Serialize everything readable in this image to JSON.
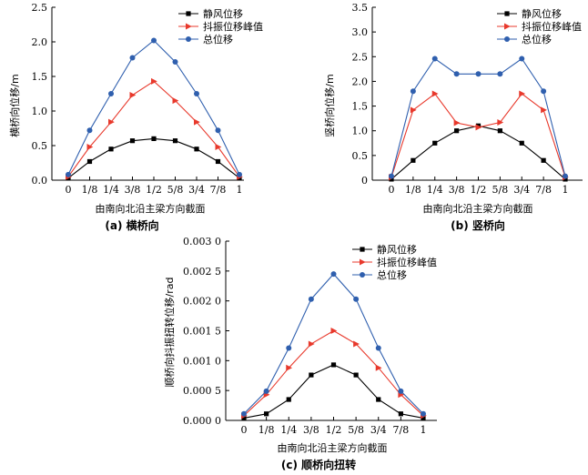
{
  "chart_data": [
    {
      "type": "line",
      "caption": "(a) 横桥向",
      "xlabel": "由南向北沿主梁方向截面",
      "ylabel": "横桥向位移/m",
      "categories": [
        "0",
        "1/8",
        "1/4",
        "3/8",
        "1/2",
        "5/8",
        "3/4",
        "7/8",
        "1"
      ],
      "yticks": [
        "0.0",
        "0.5",
        "1.0",
        "1.5",
        "2.0",
        "2.5"
      ],
      "ylim": [
        0,
        2.5
      ],
      "legend_position": "top-right",
      "series": [
        {
          "name": "静风位移",
          "marker": "square",
          "color": "#000000",
          "values": [
            0.03,
            0.27,
            0.45,
            0.57,
            0.6,
            0.57,
            0.45,
            0.27,
            0.03
          ]
        },
        {
          "name": "抖振位移峰值",
          "marker": "triangle-right",
          "color": "#e8392c",
          "values": [
            0.05,
            0.48,
            0.84,
            1.23,
            1.43,
            1.15,
            0.84,
            0.48,
            0.05
          ]
        },
        {
          "name": "总位移",
          "marker": "circle",
          "color": "#2f5fae",
          "values": [
            0.08,
            0.72,
            1.25,
            1.77,
            2.02,
            1.71,
            1.25,
            0.72,
            0.08
          ]
        }
      ]
    },
    {
      "type": "line",
      "caption": "(b) 竖桥向",
      "xlabel": "由南向北沿主梁方向截面",
      "ylabel": "竖桥向位移/m",
      "categories": [
        "0",
        "1/8",
        "1/4",
        "3/8",
        "1/2",
        "5/8",
        "3/4",
        "7/8",
        "1"
      ],
      "yticks": [
        "0",
        "0.5",
        "1.0",
        "1.5",
        "2.0",
        "2.5",
        "3.0",
        "3.5"
      ],
      "ylim": [
        0,
        3.5
      ],
      "legend_position": "top-right",
      "series": [
        {
          "name": "静风位移",
          "marker": "square",
          "color": "#000000",
          "values": [
            0.02,
            0.4,
            0.75,
            1.0,
            1.1,
            1.0,
            0.75,
            0.4,
            0.02
          ]
        },
        {
          "name": "抖振位移峰值",
          "marker": "triangle-right",
          "color": "#e8392c",
          "values": [
            0.06,
            1.42,
            1.75,
            1.16,
            1.07,
            1.17,
            1.75,
            1.42,
            0.06
          ]
        },
        {
          "name": "总位移",
          "marker": "circle",
          "color": "#2f5fae",
          "values": [
            0.08,
            1.8,
            2.46,
            2.15,
            2.15,
            2.15,
            2.46,
            1.8,
            0.08
          ]
        }
      ]
    },
    {
      "type": "line",
      "caption": "(c) 顺桥向扭转",
      "xlabel": "由南向北沿主梁方向截面",
      "ylabel": "顺桥向抖振扭转位移/rad",
      "categories": [
        "0",
        "1/8",
        "1/4",
        "3/8",
        "1/2",
        "5/8",
        "3/4",
        "7/8",
        "1"
      ],
      "yticks": [
        "0.000 0",
        "0.000 5",
        "0.001 0",
        "0.001 5",
        "0.002 0",
        "0.002 5",
        "0.003 0"
      ],
      "ylim": [
        0,
        0.003
      ],
      "legend_position": "top-right",
      "series": [
        {
          "name": "静风位移",
          "marker": "square",
          "color": "#000000",
          "values": [
            4e-05,
            0.00011,
            0.00035,
            0.00076,
            0.00093,
            0.00076,
            0.00035,
            0.00011,
            4e-05
          ]
        },
        {
          "name": "抖振位移峰值",
          "marker": "triangle-right",
          "color": "#e8392c",
          "values": [
            8e-05,
            0.00043,
            0.00088,
            0.00128,
            0.0015,
            0.00128,
            0.00088,
            0.00043,
            8e-05
          ]
        },
        {
          "name": "总位移",
          "marker": "circle",
          "color": "#2f5fae",
          "values": [
            0.00011,
            0.00049,
            0.00121,
            0.00203,
            0.00245,
            0.00203,
            0.00121,
            0.00049,
            0.00011
          ]
        }
      ]
    }
  ]
}
